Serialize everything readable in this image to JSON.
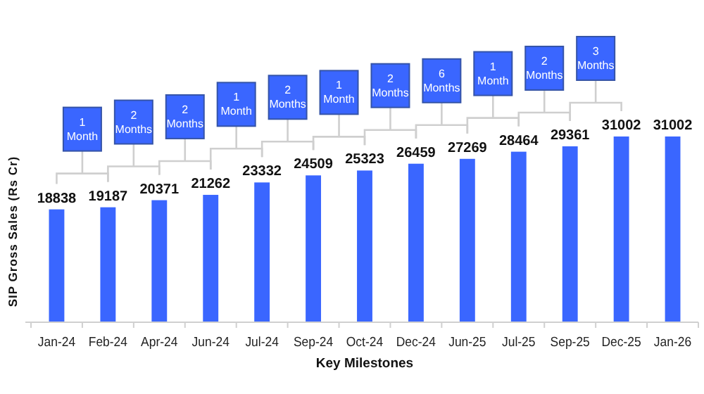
{
  "chart_data": {
    "type": "bar",
    "xlabel": "Key Milestones",
    "ylabel": "SIP Gross Sales (Rs Cr)",
    "categories": [
      "Jan-24",
      "Feb-24",
      "Apr-24",
      "Jun-24",
      "Jul-24",
      "Sep-24",
      "Oct-24",
      "Dec-24",
      "Jun-25",
      "Jul-25",
      "Sep-25",
      "Dec-25",
      "Jan-26"
    ],
    "values": [
      18838,
      19187,
      20371,
      21262,
      23332,
      24509,
      25323,
      26459,
      27269,
      28464,
      29361,
      31002,
      31002
    ],
    "color": "#3a66ff",
    "data_labels": true,
    "annotations": [
      "1 Month",
      "2 Months",
      "2 Months",
      "1 Month",
      "2 Months",
      "1 Month",
      "2 Months",
      "6 Months",
      "1 Month",
      "2 Months",
      "3 Months"
    ]
  }
}
